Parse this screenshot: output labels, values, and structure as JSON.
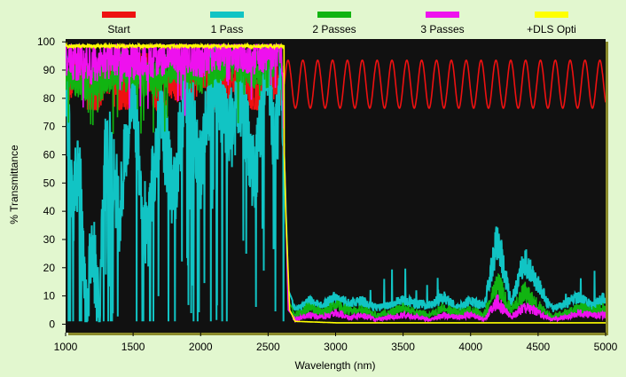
{
  "chart_data": {
    "type": "line",
    "xlabel": "Wavelength (nm)",
    "ylabel": "% Transmittance",
    "xlim": [
      1000,
      5000
    ],
    "ylim": [
      -3,
      101
    ],
    "x_ticks": [
      1000,
      1500,
      2000,
      2500,
      3000,
      3500,
      4000,
      4500,
      5000
    ],
    "y_ticks": [
      0,
      10,
      20,
      30,
      40,
      50,
      60,
      70,
      80,
      90,
      100
    ],
    "legend_position": "top",
    "plot_background": "#111111",
    "grid": false,
    "series": [
      {
        "name": "Start",
        "color": "#ee1111",
        "description_points": {
          "x": [
            1000,
            1100,
            1200,
            1300,
            1400,
            1500,
            1600,
            1700,
            1800,
            1900,
            2000,
            2100,
            2200,
            2300,
            2400,
            2500,
            2600,
            2700,
            2800,
            2900,
            3000,
            3100,
            3200,
            3300,
            3400,
            3500,
            3600,
            3700,
            3800,
            3900,
            4000,
            4100,
            4200,
            4300,
            4400,
            4500,
            4600,
            4700,
            4800,
            4900,
            5000
          ],
          "y": [
            84,
            92,
            78,
            90,
            80,
            86,
            93,
            77,
            88,
            82,
            91,
            79,
            86,
            92,
            77,
            90,
            84,
            93,
            77,
            93,
            77,
            93,
            77,
            93,
            77,
            93,
            77,
            93,
            77,
            93,
            77,
            93,
            77,
            93,
            77,
            93,
            77,
            93,
            77,
            93,
            77
          ]
        }
      },
      {
        "name": "1 Pass",
        "color": "#11c4c4",
        "description_points": {
          "x": [
            1000,
            1050,
            1100,
            1150,
            1200,
            1250,
            1300,
            1400,
            1500,
            1600,
            1700,
            1800,
            1900,
            2000,
            2100,
            2200,
            2300,
            2400,
            2500,
            2550,
            2600,
            2650,
            2700,
            2800,
            2900,
            3000,
            3100,
            3200,
            3300,
            3400,
            3500,
            3600,
            3700,
            3800,
            3900,
            4000,
            4100,
            4200,
            4300,
            4400,
            4500,
            4600,
            4700,
            4800,
            4900,
            5000
          ],
          "y": [
            90,
            40,
            60,
            5,
            30,
            2,
            70,
            40,
            85,
            30,
            75,
            45,
            88,
            55,
            92,
            65,
            80,
            50,
            95,
            60,
            90,
            12,
            6,
            10,
            8,
            12,
            9,
            10,
            7,
            8,
            11,
            9,
            8,
            12,
            7,
            10,
            8,
            38,
            9,
            28,
            18,
            6,
            9,
            12,
            8,
            12
          ]
        }
      },
      {
        "name": "2 Passes",
        "color": "#11b411",
        "description_points": {
          "x": [
            1000,
            1200,
            1400,
            1600,
            1800,
            2000,
            2200,
            2400,
            2600,
            2650,
            2700,
            2800,
            2900,
            3000,
            3100,
            3200,
            3300,
            3400,
            3500,
            3600,
            3700,
            3800,
            3900,
            4000,
            4100,
            4200,
            4300,
            4400,
            4500,
            4600,
            4700,
            4800,
            4900,
            5000
          ],
          "y": [
            88,
            85,
            90,
            86,
            92,
            88,
            94,
            90,
            96,
            8,
            4,
            7,
            5,
            8,
            6,
            6,
            4,
            5,
            7,
            5,
            4,
            7,
            5,
            6,
            4,
            18,
            6,
            14,
            8,
            3,
            5,
            7,
            6,
            7
          ]
        }
      },
      {
        "name": "3 Passes",
        "color": "#ee11ee",
        "description_points": {
          "x": [
            1000,
            1200,
            1400,
            1600,
            1800,
            2000,
            2200,
            2400,
            2600,
            2650,
            2700,
            2800,
            2900,
            3000,
            3100,
            3200,
            3300,
            3400,
            3500,
            3600,
            3700,
            3800,
            3900,
            4000,
            4100,
            4200,
            4300,
            4400,
            4500,
            4600,
            4700,
            4800,
            4900,
            5000
          ],
          "y": [
            94,
            92,
            95,
            93,
            96,
            94,
            97,
            95,
            98,
            5,
            2,
            4,
            3,
            5,
            3,
            4,
            2,
            3,
            4,
            3,
            2,
            4,
            3,
            4,
            2,
            10,
            3,
            8,
            5,
            2,
            3,
            5,
            4,
            4
          ]
        }
      },
      {
        "name": "+DLS Opti",
        "color": "#ffff00",
        "description_points": {
          "x": [
            1000,
            1500,
            2000,
            2500,
            2600,
            2630,
            2660,
            2700,
            3000,
            3500,
            4000,
            4500,
            5000
          ],
          "y": [
            99,
            99,
            99,
            99,
            99,
            40,
            5,
            1,
            0.5,
            0.5,
            0.5,
            0.5,
            0.5
          ]
        }
      }
    ]
  }
}
